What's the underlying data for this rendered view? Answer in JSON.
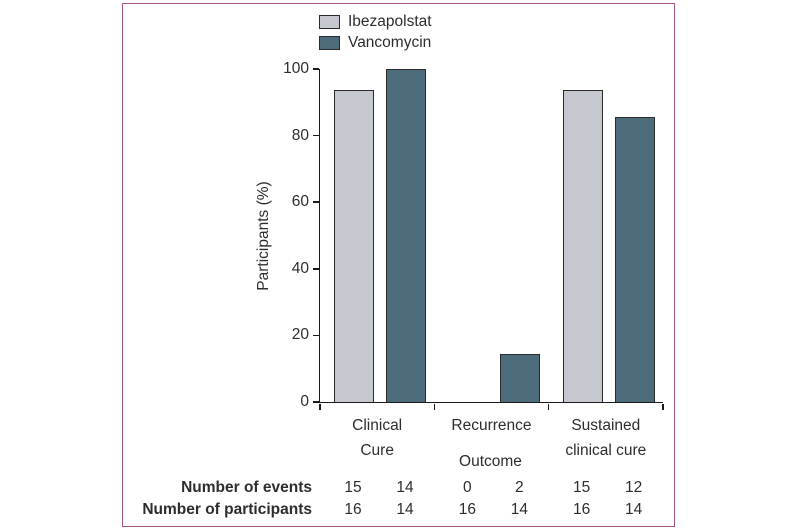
{
  "figure": {
    "frame_color": "#a6537e",
    "text_color": "#2d2d2d",
    "axis_color": "#1a1a1a"
  },
  "chart_data": {
    "type": "bar",
    "title": "",
    "xlabel": "Outcome",
    "ylabel": "Participants (%)",
    "ylim": [
      0,
      100
    ],
    "yticks": [
      0,
      20,
      40,
      60,
      80,
      100
    ],
    "grid": false,
    "legend_position": "top-center",
    "categories": [
      "Clinical\nCure",
      "Recurrence",
      "Sustained\nclinical cure"
    ],
    "series": [
      {
        "name": "Ibezapolstat",
        "color": "#c5c9cf",
        "border_color": "#2b2b2b",
        "values": [
          93.8,
          0,
          93.8
        ]
      },
      {
        "name": "Vancomycin",
        "color": "#4c6c7c",
        "border_color": "#2b2b2b",
        "values": [
          100,
          14.3,
          85.7
        ]
      }
    ]
  },
  "table": {
    "rows": [
      {
        "label": "Number of events",
        "values": [
          "15",
          "14",
          "0",
          "2",
          "15",
          "12"
        ]
      },
      {
        "label": "Number of participants",
        "values": [
          "16",
          "14",
          "16",
          "14",
          "16",
          "14"
        ]
      }
    ]
  }
}
